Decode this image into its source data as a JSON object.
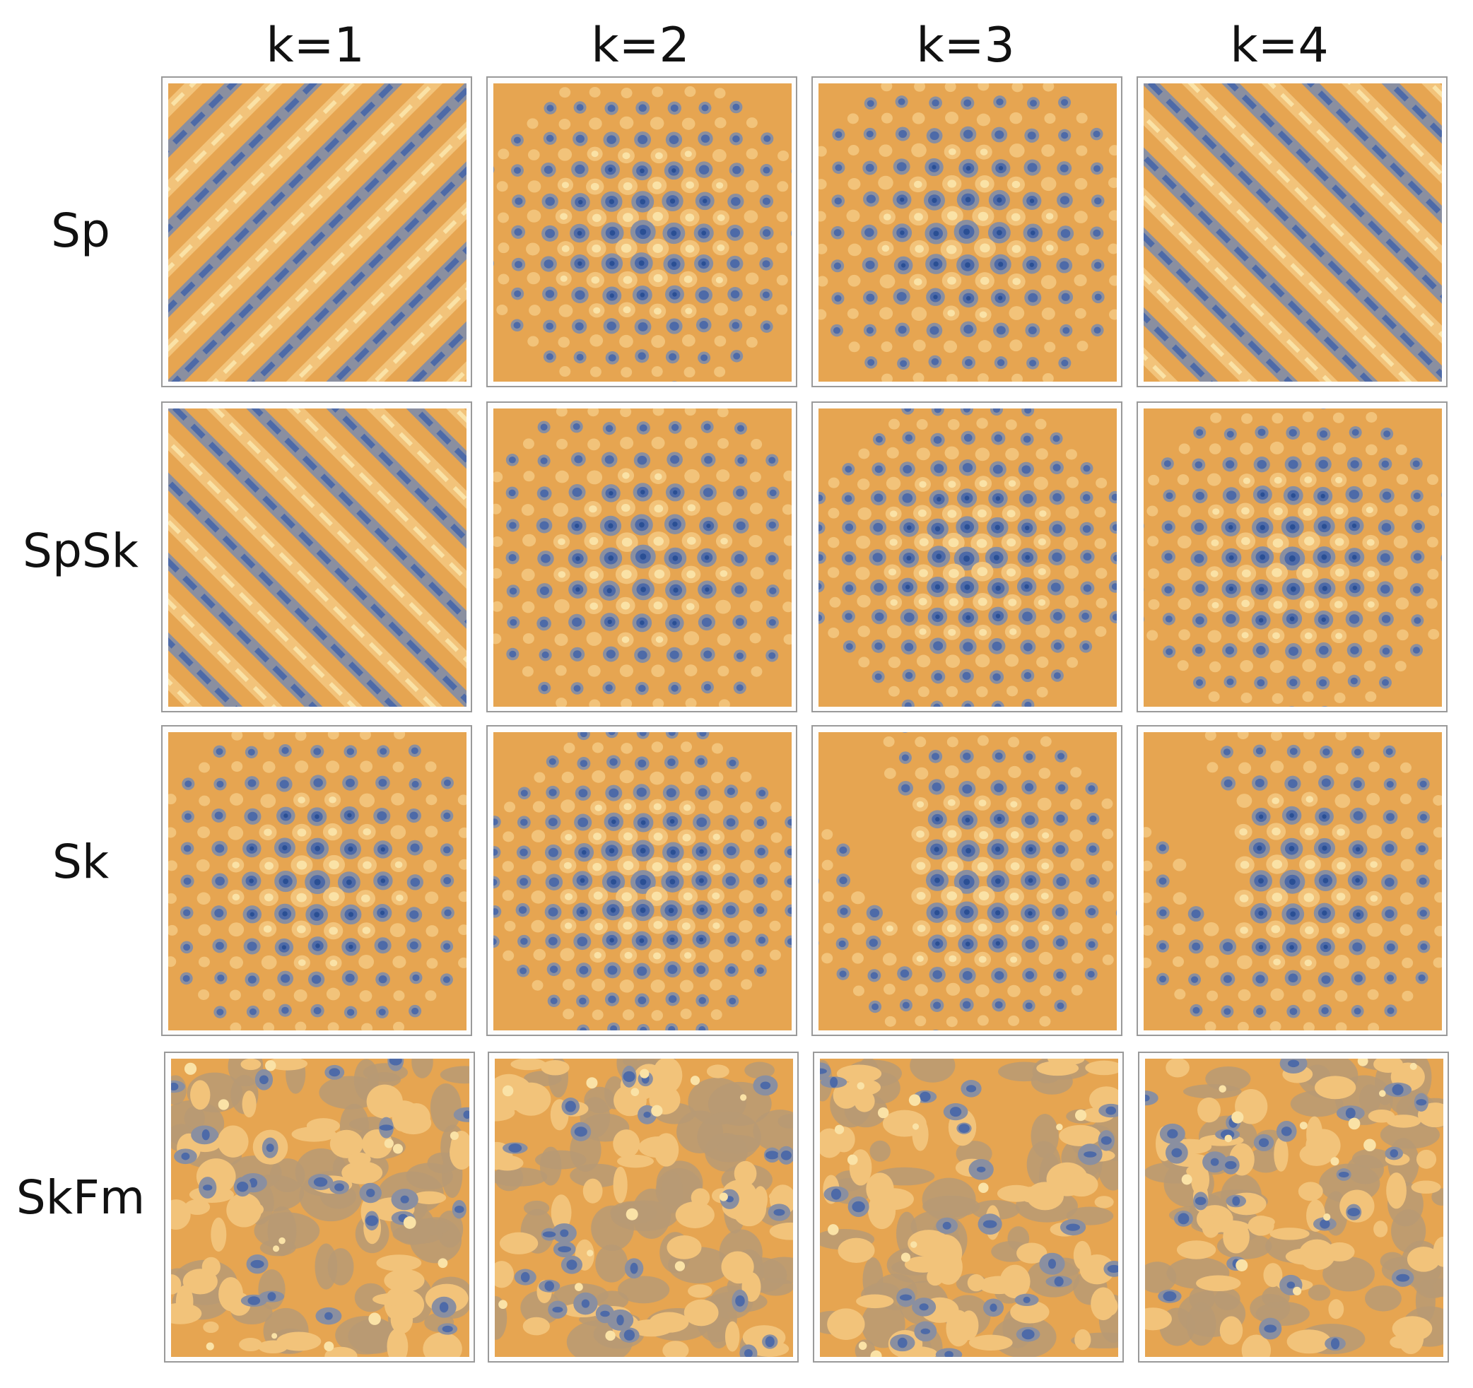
{
  "columns": [
    "k=1",
    "k=2",
    "k=3",
    "k=4"
  ],
  "rows": [
    "Sp",
    "SpSk",
    "Sk",
    "SkFm"
  ],
  "palette": {
    "deep_blue": "#2a4f94",
    "blue": "#4d6aa8",
    "slate": "#8a8fa0",
    "taupe": "#b79a74",
    "tan": "#c89a5c",
    "orange": "#e6a551",
    "light": "#f2c37a",
    "pale": "#fae2a6",
    "frame": "#9a9a9a"
  },
  "panels": [
    {
      "row": "Sp",
      "col": "k=1",
      "pattern": "diagonal-stripes-ne"
    },
    {
      "row": "Sp",
      "col": "k=2",
      "pattern": "square-lattice"
    },
    {
      "row": "Sp",
      "col": "k=3",
      "pattern": "square-lattice"
    },
    {
      "row": "Sp",
      "col": "k=4",
      "pattern": "diagonal-stripes-nw"
    },
    {
      "row": "SpSk",
      "col": "k=1",
      "pattern": "diagonal-stripes-nw"
    },
    {
      "row": "SpSk",
      "col": "k=2",
      "pattern": "square-lattice"
    },
    {
      "row": "SpSk",
      "col": "k=3",
      "pattern": "lattice-stripes"
    },
    {
      "row": "SpSk",
      "col": "k=4",
      "pattern": "square-lattice"
    },
    {
      "row": "Sk",
      "col": "k=1",
      "pattern": "square-lattice"
    },
    {
      "row": "Sk",
      "col": "k=2",
      "pattern": "square-lattice"
    },
    {
      "row": "Sk",
      "col": "k=3",
      "pattern": "lattice-domain"
    },
    {
      "row": "Sk",
      "col": "k=4",
      "pattern": "lattice-domain"
    },
    {
      "row": "SkFm",
      "col": "k=1",
      "pattern": "disordered"
    },
    {
      "row": "SkFm",
      "col": "k=2",
      "pattern": "disordered"
    },
    {
      "row": "SkFm",
      "col": "k=3",
      "pattern": "disordered"
    },
    {
      "row": "SkFm",
      "col": "k=4",
      "pattern": "disordered"
    }
  ]
}
